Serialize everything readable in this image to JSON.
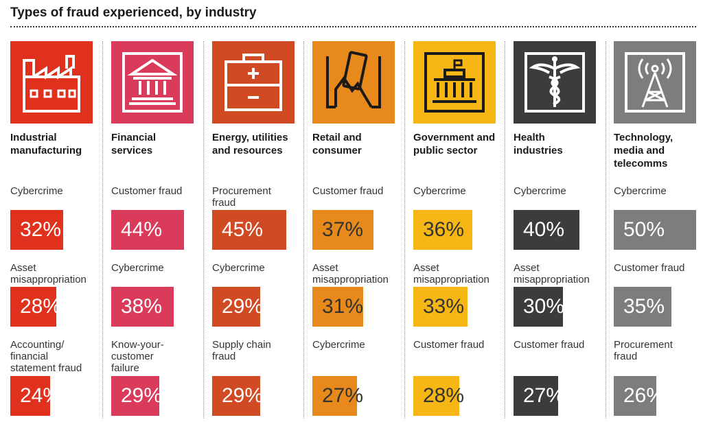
{
  "title": "Types of fraud experienced, by industry",
  "colors": {
    "industrial": "#e0301e",
    "financial": "#db3b5b",
    "energy": "#d04a23",
    "retail": "#e88a1b",
    "government": "#f6b715",
    "health": "#3c3c3c",
    "technology": "#7d7d7d"
  },
  "industries": [
    {
      "name_line1": "Industrial",
      "name_line2": "manufacturing",
      "name_line3": "",
      "icon": "factory-icon",
      "frauds": [
        {
          "label1": "Cybercrime",
          "label2": "",
          "label3": "",
          "pct": "32%"
        },
        {
          "label1": "Asset",
          "label2": "misappropriation",
          "label3": "",
          "pct": "28%"
        },
        {
          "label1": "Accounting/",
          "label2": "financial",
          "label3": "statement fraud",
          "pct": "24%"
        }
      ]
    },
    {
      "name_line1": "Financial",
      "name_line2": "services",
      "name_line3": "",
      "icon": "bank-icon",
      "frauds": [
        {
          "label1": "Customer fraud",
          "label2": "",
          "label3": "",
          "pct": "44%"
        },
        {
          "label1": "Cybercrime",
          "label2": "",
          "label3": "",
          "pct": "38%"
        },
        {
          "label1": "Know-your-",
          "label2": "customer",
          "label3": "failure",
          "pct": "29%"
        }
      ]
    },
    {
      "name_line1": "Energy, utilities",
      "name_line2": "and resources",
      "name_line3": "",
      "icon": "battery-icon",
      "frauds": [
        {
          "label1": "Procurement",
          "label2": "fraud",
          "label3": "",
          "pct": "45%"
        },
        {
          "label1": "Cybercrime",
          "label2": "",
          "label3": "",
          "pct": "29%"
        },
        {
          "label1": "Supply chain",
          "label2": "fraud",
          "label3": "",
          "pct": "29%"
        }
      ]
    },
    {
      "name_line1": "Retail and",
      "name_line2": "consumer",
      "name_line3": "",
      "icon": "card-in-hand-icon",
      "frauds": [
        {
          "label1": "Customer fraud",
          "label2": "",
          "label3": "",
          "pct": "37%"
        },
        {
          "label1": "Asset",
          "label2": "misappropriation",
          "label3": "",
          "pct": "31%"
        },
        {
          "label1": "Cybercrime",
          "label2": "",
          "label3": "",
          "pct": "27%"
        }
      ]
    },
    {
      "name_line1": "Government and",
      "name_line2": "public sector",
      "name_line3": "",
      "icon": "government-building-icon",
      "frauds": [
        {
          "label1": "Cybercrime",
          "label2": "",
          "label3": "",
          "pct": "36%"
        },
        {
          "label1": "Asset",
          "label2": "misappropriation",
          "label3": "",
          "pct": "33%"
        },
        {
          "label1": "Customer fraud",
          "label2": "",
          "label3": "",
          "pct": "28%"
        }
      ]
    },
    {
      "name_line1": "Health",
      "name_line2": "industries",
      "name_line3": "",
      "icon": "caduceus-icon",
      "frauds": [
        {
          "label1": "Cybercrime",
          "label2": "",
          "label3": "",
          "pct": "40%"
        },
        {
          "label1": "Asset",
          "label2": "misappropriation",
          "label3": "",
          "pct": "30%"
        },
        {
          "label1": "Customer fraud",
          "label2": "",
          "label3": "",
          "pct": "27%"
        }
      ]
    },
    {
      "name_line1": "Technology,",
      "name_line2": "media and",
      "name_line3": "telecomms",
      "icon": "antenna-tower-icon",
      "frauds": [
        {
          "label1": "Cybercrime",
          "label2": "",
          "label3": "",
          "pct": "50%"
        },
        {
          "label1": "Customer fraud",
          "label2": "",
          "label3": "",
          "pct": "35%"
        },
        {
          "label1": "Procurement",
          "label2": "fraud",
          "label3": "",
          "pct": "26%"
        }
      ]
    }
  ],
  "chart_data": {
    "type": "bar",
    "title": "Types of fraud experienced, by industry",
    "unit": "%",
    "groups": [
      {
        "industry": "Industrial manufacturing",
        "categories": [
          "Cybercrime",
          "Asset misappropriation",
          "Accounting/ financial statement fraud"
        ],
        "values": [
          32,
          28,
          24
        ]
      },
      {
        "industry": "Financial services",
        "categories": [
          "Customer fraud",
          "Cybercrime",
          "Know-your- customer failure"
        ],
        "values": [
          44,
          38,
          29
        ]
      },
      {
        "industry": "Energy, utilities and resources",
        "categories": [
          "Procurement fraud",
          "Cybercrime",
          "Supply chain fraud"
        ],
        "values": [
          45,
          29,
          29
        ]
      },
      {
        "industry": "Retail and consumer",
        "categories": [
          "Customer fraud",
          "Asset misappropriation",
          "Cybercrime"
        ],
        "values": [
          37,
          31,
          27
        ]
      },
      {
        "industry": "Government and public sector",
        "categories": [
          "Cybercrime",
          "Asset misappropriation",
          "Customer fraud"
        ],
        "values": [
          36,
          33,
          28
        ]
      },
      {
        "industry": "Health industries",
        "categories": [
          "Cybercrime",
          "Asset misappropriation",
          "Customer fraud"
        ],
        "values": [
          40,
          30,
          27
        ]
      },
      {
        "industry": "Technology, media and telecomms",
        "categories": [
          "Cybercrime",
          "Customer fraud",
          "Procurement fraud"
        ],
        "values": [
          50,
          35,
          26
        ]
      }
    ]
  }
}
